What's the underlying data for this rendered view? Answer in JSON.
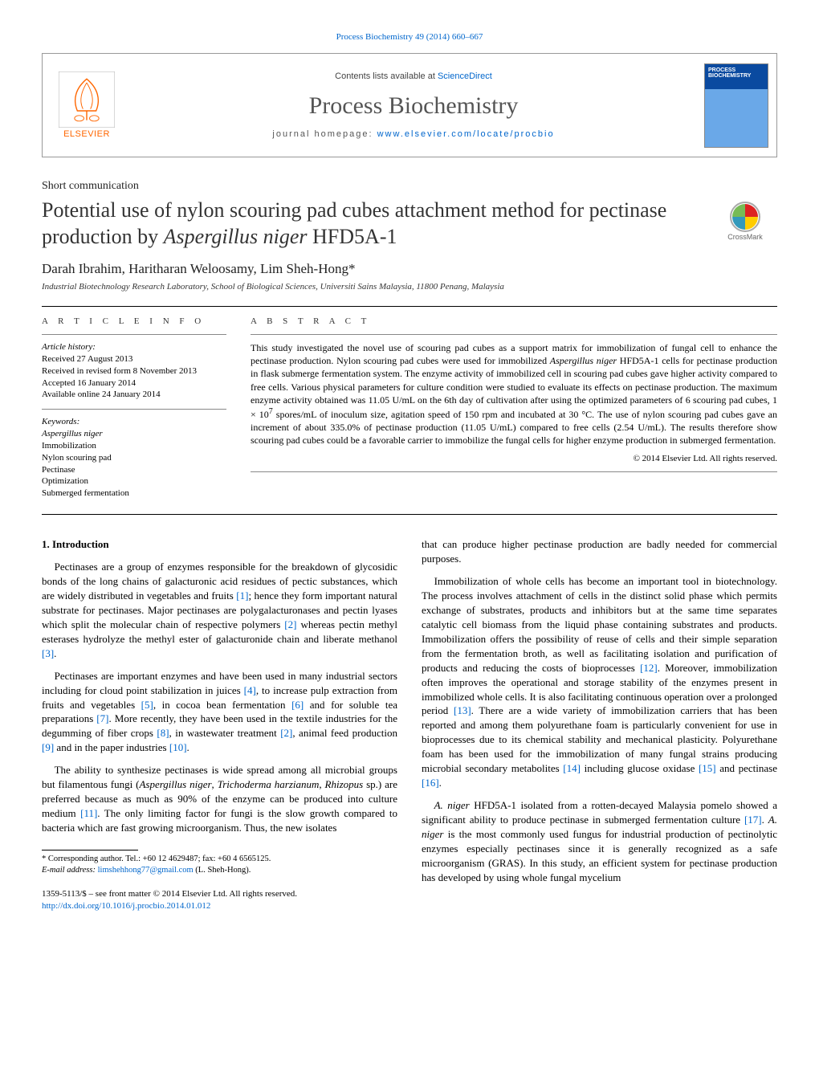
{
  "header": {
    "journal_ref_text": "Process Biochemistry 49 (2014) 660–667",
    "contents_line_prefix": "Contents lists available at ",
    "contents_line_link": "ScienceDirect",
    "journal_title": "Process Biochemistry",
    "homepage_prefix": "journal homepage: ",
    "homepage_url": "www.elsevier.com/locate/procbio",
    "elsevier_brand": "ELSEVIER",
    "cover_text_top": "PROCESS",
    "cover_text_bottom": "BIOCHEMISTRY"
  },
  "crossmark_label": "CrossMark",
  "article_type": "Short communication",
  "title_html": "Potential use of nylon scouring pad cubes attachment method for pectinase production by <em>Aspergillus niger</em> HFD5A-1",
  "authors": "Darah Ibrahim, Haritharan Weloosamy, Lim Sheh-Hong*",
  "affiliation": "Industrial Biotechnology Research Laboratory, School of Biological Sciences, Universiti Sains Malaysia, 11800 Penang, Malaysia",
  "info": {
    "heading": "a r t i c l e   i n f o",
    "history_label": "Article history:",
    "history": [
      "Received 27 August 2013",
      "Received in revised form 8 November 2013",
      "Accepted 16 January 2014",
      "Available online 24 January 2014"
    ],
    "keywords_label": "Keywords:",
    "keywords": [
      "Aspergillus niger",
      "Immobilization",
      "Nylon scouring pad",
      "Pectinase",
      "Optimization",
      "Submerged fermentation"
    ]
  },
  "abstract": {
    "heading": "a b s t r a c t",
    "body_html": "This study investigated the novel use of scouring pad cubes as a support matrix for immobilization of fungal cell to enhance the pectinase production. Nylon scouring pad cubes were used for immobilized <em>Aspergillus niger</em> HFD5A-1 cells for pectinase production in flask submerge fermentation system. The enzyme activity of immobilized cell in scouring pad cubes gave higher activity compared to free cells. Various physical parameters for culture condition were studied to evaluate its effects on pectinase production. The maximum enzyme activity obtained was 11.05 U/mL on the 6th day of cultivation after using the optimized parameters of 6 scouring pad cubes, 1 × 10<sup>7</sup> spores/mL of inoculum size, agitation speed of 150 rpm and incubated at 30 °C. The use of nylon scouring pad cubes gave an increment of about 335.0% of pectinase production (11.05 U/mL) compared to free cells (2.54 U/mL). The results therefore show scouring pad cubes could be a favorable carrier to immobilize the fungal cells for higher enzyme production in submerged fermentation.",
    "copyright": "© 2014 Elsevier Ltd. All rights reserved."
  },
  "body": {
    "section_head": "1. Introduction",
    "left_paras": [
      "Pectinases are a group of enzymes responsible for the breakdown of glycosidic bonds of the long chains of galacturonic acid residues of pectic substances, which are widely distributed in vegetables and fruits <span class=\"ref\">[1]</span>; hence they form important natural substrate for pectinases. Major pectinases are polygalacturonases and pectin lyases which split the molecular chain of respective polymers <span class=\"ref\">[2]</span> whereas pectin methyl esterases hydrolyze the methyl ester of galacturonide chain and liberate methanol <span class=\"ref\">[3]</span>.",
      "Pectinases are important enzymes and have been used in many industrial sectors including for cloud point stabilization in juices <span class=\"ref\">[4]</span>, to increase pulp extraction from fruits and vegetables <span class=\"ref\">[5]</span>, in cocoa bean fermentation <span class=\"ref\">[6]</span> and for soluble tea preparations <span class=\"ref\">[7]</span>. More recently, they have been used in the textile industries for the degumming of fiber crops <span class=\"ref\">[8]</span>, in wastewater treatment <span class=\"ref\">[2]</span>, animal feed production <span class=\"ref\">[9]</span> and in the paper industries <span class=\"ref\">[10]</span>.",
      "The ability to synthesize pectinases is wide spread among all microbial groups but filamentous fungi (<em>Aspergillus niger</em>, <em>Trichoderma harzianum</em>, <em>Rhizopus</em> sp.) are preferred because as much as 90% of the enzyme can be produced into culture medium <span class=\"ref\">[11]</span>. The only limiting factor for fungi is the slow growth compared to bacteria which are fast growing microorganism. Thus, the new isolates"
    ],
    "right_paras": [
      "that can produce higher pectinase production are badly needed for commercial purposes.",
      "Immobilization of whole cells has become an important tool in biotechnology. The process involves attachment of cells in the distinct solid phase which permits exchange of substrates, products and inhibitors but at the same time separates catalytic cell biomass from the liquid phase containing substrates and products. Immobilization offers the possibility of reuse of cells and their simple separation from the fermentation broth, as well as facilitating isolation and purification of products and reducing the costs of bioprocesses <span class=\"ref\">[12]</span>. Moreover, immobilization often improves the operational and storage stability of the enzymes present in immobilized whole cells. It is also facilitating continuous operation over a prolonged period <span class=\"ref\">[13]</span>. There are a wide variety of immobilization carriers that has been reported and among them polyurethane foam is particularly convenient for use in bioprocesses due to its chemical stability and mechanical plasticity. Polyurethane foam has been used for the immobilization of many fungal strains producing microbial secondary metabolites <span class=\"ref\">[14]</span> including glucose oxidase <span class=\"ref\">[15]</span> and pectinase <span class=\"ref\">[16]</span>.",
      "<em>A. niger</em> HFD5A-1 isolated from a rotten-decayed Malaysia pomelo showed a significant ability to produce pectinase in submerged fermentation culture <span class=\"ref\">[17]</span>. <em>A. niger</em> is the most commonly used fungus for industrial production of pectinolytic enzymes especially pectinases since it is generally recognized as a safe microorganism (GRAS). In this study, an efficient system for pectinase production has developed by using whole fungal mycelium"
    ]
  },
  "footnote": {
    "corr": "* Corresponding author. Tel.: +60 12 4629487; fax: +60 4 6565125.",
    "email_label": "E-mail address: ",
    "email": "limshehhong77@gmail.com",
    "email_suffix": " (L. Sheh-Hong)."
  },
  "doi": {
    "line1": "1359-5113/$ – see front matter © 2014 Elsevier Ltd. All rights reserved.",
    "line2": "http://dx.doi.org/10.1016/j.procbio.2014.01.012"
  },
  "colors": {
    "link": "#0066cc",
    "elsevier_orange": "#ff6600"
  }
}
